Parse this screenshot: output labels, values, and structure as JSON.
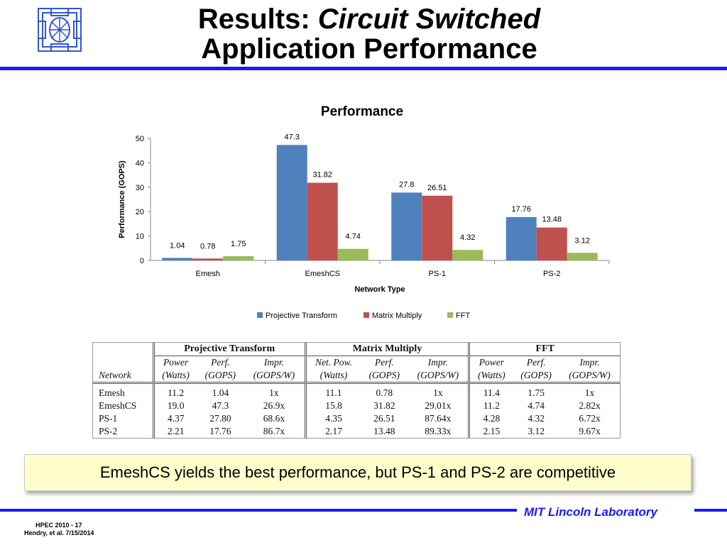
{
  "slide": {
    "title_line1_plain": "Results: ",
    "title_line1_italic": "Circuit Switched",
    "title_line2": "Application Performance",
    "callout": "EmeshCS yields the best performance, but PS-1 and PS-2 are competitive",
    "lab_name": "MIT Lincoln Laboratory",
    "footer_line1": "HPEC 2010 - 17",
    "footer_line2": "Hendry, et al. 7/15/2014",
    "accent_color": "#1a1aff",
    "callout_bg": "#ffffcc"
  },
  "chart_data": {
    "type": "bar",
    "title": "Performance",
    "xlabel": "Network Type",
    "ylabel": "Performance (GOPS)",
    "ylim": [
      0,
      50
    ],
    "yticks": [
      0,
      10,
      20,
      30,
      40,
      50
    ],
    "grid": false,
    "legend_position": "bottom",
    "categories": [
      "Emesh",
      "EmeshCS",
      "PS-1",
      "PS-2"
    ],
    "series": [
      {
        "name": "Projective Transform",
        "color": "#4f81bd",
        "values": [
          1.04,
          47.3,
          27.8,
          17.76
        ],
        "labels": [
          "1.04",
          "47.3",
          "27.8",
          "17.76"
        ]
      },
      {
        "name": "Matrix Multiply",
        "color": "#c0504d",
        "values": [
          0.78,
          31.82,
          26.51,
          13.48
        ],
        "labels": [
          "0.78",
          "31.82",
          "26.51",
          "13.48"
        ]
      },
      {
        "name": "FFT",
        "color": "#9bbb59",
        "values": [
          1.75,
          4.74,
          4.32,
          3.12
        ],
        "labels": [
          "1.75",
          "4.74",
          "4.32",
          "3.12"
        ]
      }
    ]
  },
  "table": {
    "groups": [
      "Projective Transform",
      "Matrix Multiply",
      "FFT"
    ],
    "network_label": "Network",
    "head_row1": [
      "Power",
      "Perf.",
      "Impr.",
      "Net. Pow.",
      "Perf.",
      "Impr.",
      "Power",
      "Perf.",
      "Impr."
    ],
    "head_row2": [
      "(Watts)",
      "(GOPS)",
      "(GOPS/W)",
      "(Watts)",
      "(GOPS)",
      "(GOPS/W)",
      "(Watts)",
      "(GOPS)",
      "(GOPS/W)"
    ],
    "rows": [
      {
        "network": "Emesh",
        "cells": [
          "11.2",
          "1.04",
          "1x",
          "11.1",
          "0.78",
          "1x",
          "11.4",
          "1.75",
          "1x"
        ]
      },
      {
        "network": "EmeshCS",
        "cells": [
          "19.0",
          "47.3",
          "26.9x",
          "15.8",
          "31.82",
          "29.01x",
          "11.2",
          "4.74",
          "2.82x"
        ]
      },
      {
        "network": "PS-1",
        "cells": [
          "4.37",
          "27.80",
          "68.6x",
          "4.35",
          "26.51",
          "87.64x",
          "4.28",
          "4.32",
          "6.72x"
        ]
      },
      {
        "network": "PS-2",
        "cells": [
          "2.21",
          "17.76",
          "86.7x",
          "2.17",
          "13.48",
          "89.33x",
          "2.15",
          "3.12",
          "9.67x"
        ]
      }
    ]
  }
}
